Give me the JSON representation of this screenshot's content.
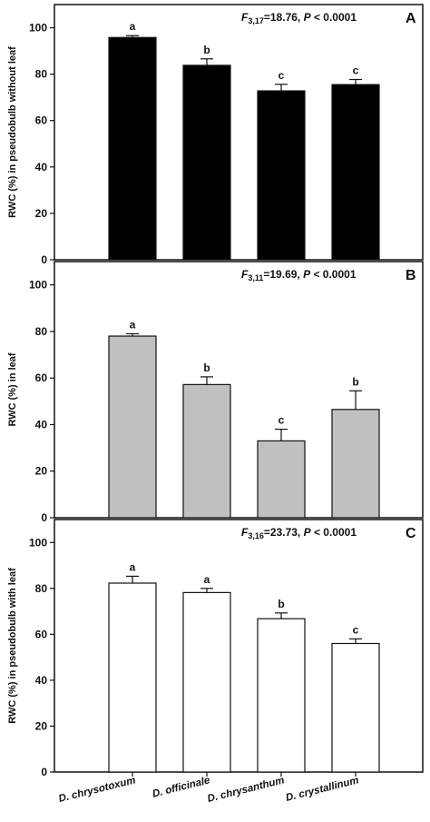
{
  "chart_data": {
    "categories": [
      "D. chrysotoxum",
      "D. officinale",
      "D. chrysanthum",
      "D. crystallinum"
    ],
    "panels": [
      {
        "panel": "A",
        "type": "bar",
        "ylabel": "RWC (%) in pseudobulb without leaf",
        "stat": {
          "pre": "F",
          "sub": "3,17",
          "post": "=18.76, ",
          "p_letter": "P",
          "p_rest": " < 0.0001"
        },
        "ylim": [
          0,
          110
        ],
        "yticks": [
          0,
          20,
          40,
          60,
          80,
          100
        ],
        "values": [
          95.8,
          83.8,
          72.8,
          75.5
        ],
        "errors": [
          0.8,
          2.8,
          2.8,
          2.2
        ],
        "letters": [
          "a",
          "b",
          "c",
          "c"
        ],
        "bar_color": "#000000"
      },
      {
        "panel": "B",
        "type": "bar",
        "ylabel": "RWC (%) in leaf",
        "stat": {
          "pre": "F",
          "sub": "3,11",
          "post": "=19.69, ",
          "p_letter": "P",
          "p_rest": " < 0.0001"
        },
        "ylim": [
          0,
          110
        ],
        "yticks": [
          0,
          20,
          40,
          60,
          80,
          100
        ],
        "values": [
          78.0,
          57.2,
          33.0,
          46.5
        ],
        "errors": [
          1.0,
          3.3,
          5.0,
          8.0
        ],
        "letters": [
          "a",
          "b",
          "c",
          "b"
        ],
        "bar_color": "#c0c0c0"
      },
      {
        "panel": "C",
        "type": "bar",
        "ylabel": "RWC (%) in pseudobulb  with leaf",
        "stat": {
          "pre": "F",
          "sub": "3,16",
          "post": "=23.73, ",
          "p_letter": "P",
          "p_rest": " < 0.0001"
        },
        "ylim": [
          0,
          110
        ],
        "yticks": [
          0,
          20,
          40,
          60,
          80,
          100
        ],
        "values": [
          82.3,
          78.2,
          66.8,
          56.0
        ],
        "errors": [
          3.0,
          1.8,
          2.5,
          2.0
        ],
        "letters": [
          "a",
          "a",
          "b",
          "c"
        ],
        "bar_color": "#ffffff"
      }
    ],
    "grid": false,
    "legend": "none"
  }
}
